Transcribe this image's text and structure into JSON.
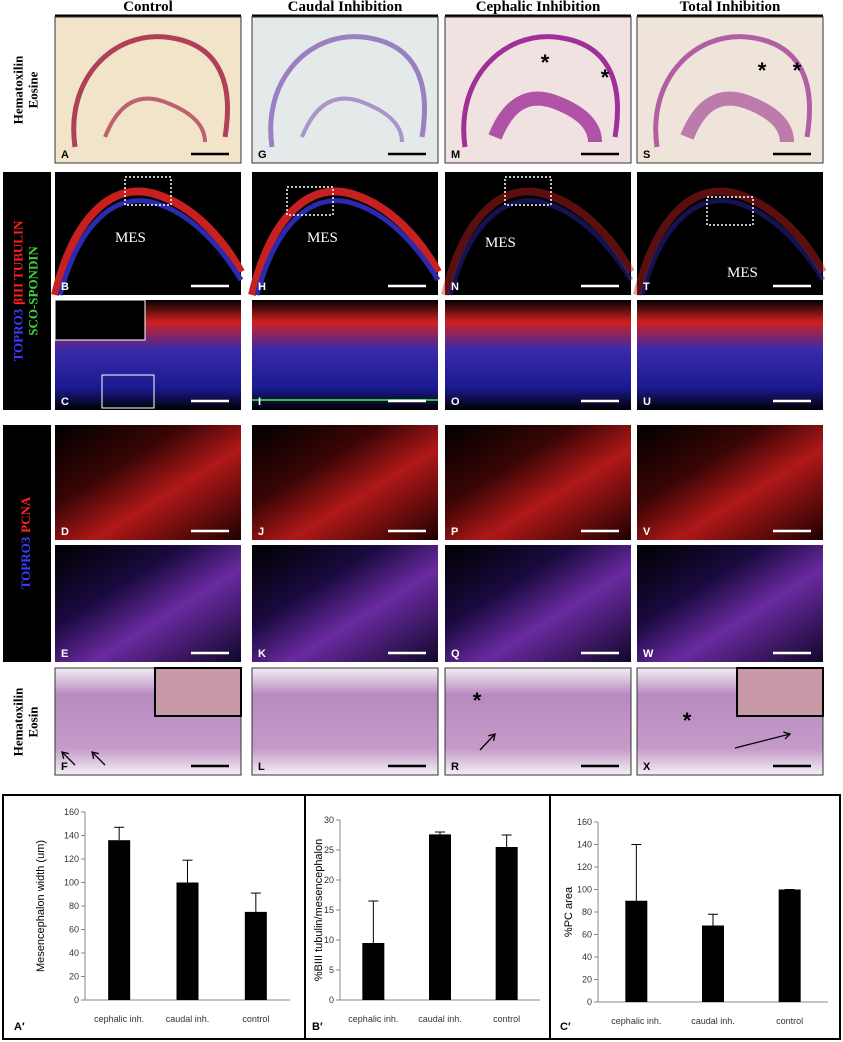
{
  "columns": [
    "Control",
    "Caudal Inhibition",
    "Cephalic Inhibition",
    "Total  Inhibition"
  ],
  "row_labels": [
    [
      [
        {
          "text": "Hematoxilin",
          "color": "#000000"
        }
      ],
      [
        {
          "text": "Eosine",
          "color": "#000000"
        }
      ]
    ],
    [
      [
        {
          "text": "TOPRO3",
          "color": "#3b3bff"
        },
        {
          "text": "βIII TUBULIN",
          "color": "#ff2020"
        }
      ],
      [
        {
          "text": "SCO-SPONDIN",
          "color": "#40d040"
        }
      ]
    ],
    [
      [
        {
          "text": "TOPRO3",
          "color": "#3b3bff"
        },
        {
          "text": "PCNA",
          "color": "#ff2020"
        }
      ]
    ],
    [
      [
        {
          "text": "Hematoxilin",
          "color": "#000000"
        }
      ],
      [
        {
          "text": "Eosin",
          "color": "#000000"
        }
      ]
    ]
  ],
  "panels": [
    [
      "A",
      "G",
      "M",
      "S"
    ],
    [
      "B",
      "H",
      "N",
      "T"
    ],
    [
      "C",
      "I",
      "O",
      "U"
    ],
    [
      "D",
      "J",
      "P",
      "V"
    ],
    [
      "E",
      "K",
      "Q",
      "W"
    ],
    [
      "F",
      "L",
      "R",
      "X"
    ]
  ],
  "region_label": "MES",
  "annotation_mark": "*",
  "chart_data": [
    {
      "type": "bar",
      "panel_label": "A′",
      "ylabel": "Mesencephalon width (um)",
      "categories": [
        "cephalic inh.",
        "caudal inh.",
        "control"
      ],
      "values": [
        136,
        100,
        75
      ],
      "errors": [
        11,
        19,
        16
      ],
      "color": "#000000",
      "ylim": [
        0,
        160
      ],
      "yticks": [
        0,
        20,
        40,
        60,
        80,
        100,
        120,
        140,
        160
      ]
    },
    {
      "type": "bar",
      "panel_label": "B′",
      "ylabel": "%BIII tubulin/mesencephalon",
      "categories": [
        "cephalic inh.",
        "caudal inh.",
        "control"
      ],
      "values": [
        9.5,
        27.6,
        25.5
      ],
      "errors": [
        7,
        0.4,
        2
      ],
      "color": "#000000",
      "ylim": [
        0,
        30
      ],
      "yticks": [
        0,
        5,
        10,
        15,
        20,
        25,
        30
      ]
    },
    {
      "type": "bar",
      "panel_label": "C′",
      "ylabel": "%PC area",
      "categories": [
        "cephalic inh.",
        "caudal inh.",
        "control"
      ],
      "values": [
        90,
        68,
        100
      ],
      "errors": [
        50,
        10,
        0
      ],
      "color": "#000000",
      "ylim": [
        0,
        160
      ],
      "yticks": [
        0,
        20,
        40,
        60,
        80,
        100,
        120,
        140,
        160
      ]
    }
  ]
}
